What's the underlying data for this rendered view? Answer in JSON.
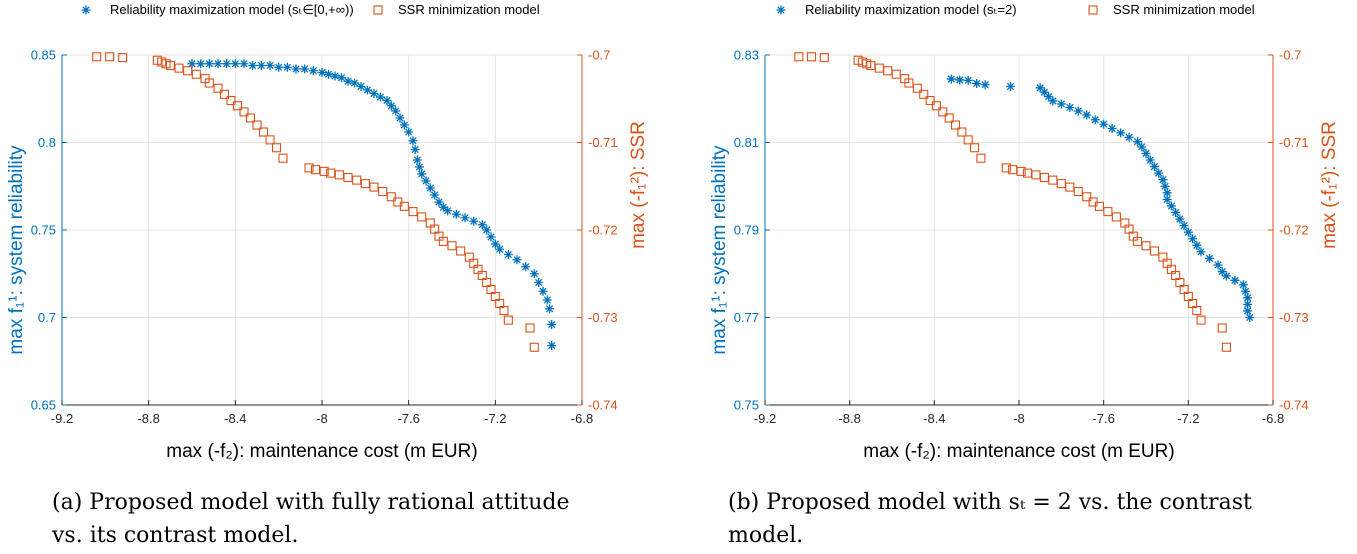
{
  "colors": {
    "series1": "#0072BD",
    "series2": "#D95319",
    "grid": "#e3e3e3"
  },
  "chart_data": [
    {
      "type": "scatter",
      "panel": "a",
      "caption_line1": "(a) Proposed model with fully rational attitude",
      "caption_line2": "vs. its contrast model.",
      "xlabel": "max (-f₂): maintenance cost (m EUR)",
      "ylabel_left": "max f₁¹: system reliability",
      "ylabel_right": "max (-f₁²): SSR",
      "xlim": [
        -9.2,
        -6.8
      ],
      "ylim_left": [
        0.65,
        0.85
      ],
      "ylim_right": [
        -0.74,
        -0.7
      ],
      "xticks": [
        "-9.2",
        "-8.8",
        "-8.4",
        "-8",
        "-7.6",
        "-7.2",
        "-6.8"
      ],
      "yticks_left": [
        "0.65",
        "0.7",
        "0.75",
        "0.8",
        "0.85"
      ],
      "yticks_right": [
        "-0.74",
        "-0.73",
        "-0.72",
        "-0.71",
        "-0.7"
      ],
      "legend_position": "top",
      "series": [
        {
          "name": "Reliability maximization model (sₜ∈[0,+∞))",
          "marker": "star",
          "axis": "left",
          "points": [
            [
              -8.6,
              0.845
            ],
            [
              -8.56,
              0.845
            ],
            [
              -8.52,
              0.845
            ],
            [
              -8.48,
              0.845
            ],
            [
              -8.44,
              0.845
            ],
            [
              -8.4,
              0.845
            ],
            [
              -8.36,
              0.845
            ],
            [
              -8.32,
              0.844
            ],
            [
              -8.28,
              0.844
            ],
            [
              -8.24,
              0.844
            ],
            [
              -8.2,
              0.843
            ],
            [
              -8.16,
              0.843
            ],
            [
              -8.12,
              0.842
            ],
            [
              -8.08,
              0.842
            ],
            [
              -8.04,
              0.841
            ],
            [
              -8.0,
              0.84
            ],
            [
              -7.97,
              0.839
            ],
            [
              -7.94,
              0.838
            ],
            [
              -7.91,
              0.837
            ],
            [
              -7.88,
              0.835
            ],
            [
              -7.85,
              0.834
            ],
            [
              -7.82,
              0.832
            ],
            [
              -7.79,
              0.83
            ],
            [
              -7.76,
              0.828
            ],
            [
              -7.73,
              0.826
            ],
            [
              -7.7,
              0.824
            ],
            [
              -7.68,
              0.821
            ],
            [
              -7.66,
              0.818
            ],
            [
              -7.64,
              0.814
            ],
            [
              -7.62,
              0.81
            ],
            [
              -7.6,
              0.806
            ],
            [
              -7.58,
              0.801
            ],
            [
              -7.57,
              0.796
            ],
            [
              -7.56,
              0.79
            ],
            [
              -7.55,
              0.786
            ],
            [
              -7.54,
              0.782
            ],
            [
              -7.52,
              0.778
            ],
            [
              -7.5,
              0.774
            ],
            [
              -7.48,
              0.77
            ],
            [
              -7.46,
              0.766
            ],
            [
              -7.44,
              0.763
            ],
            [
              -7.42,
              0.761
            ],
            [
              -7.38,
              0.759
            ],
            [
              -7.34,
              0.757
            ],
            [
              -7.3,
              0.755
            ],
            [
              -7.26,
              0.753
            ],
            [
              -7.24,
              0.75
            ],
            [
              -7.22,
              0.746
            ],
            [
              -7.2,
              0.742
            ],
            [
              -7.18,
              0.739
            ],
            [
              -7.14,
              0.736
            ],
            [
              -7.1,
              0.733
            ],
            [
              -7.06,
              0.729
            ],
            [
              -7.02,
              0.725
            ],
            [
              -7.0,
              0.72
            ],
            [
              -6.98,
              0.715
            ],
            [
              -6.96,
              0.71
            ],
            [
              -6.95,
              0.705
            ],
            [
              -6.94,
              0.696
            ],
            [
              -6.94,
              0.684
            ]
          ]
        },
        {
          "name": "SSR minimization model",
          "marker": "square",
          "axis": "right",
          "points": [
            [
              -9.04,
              -0.7002
            ],
            [
              -8.98,
              -0.7002
            ],
            [
              -8.92,
              -0.7003
            ],
            [
              -8.76,
              -0.7006
            ],
            [
              -8.74,
              -0.7008
            ],
            [
              -8.72,
              -0.701
            ],
            [
              -8.7,
              -0.7012
            ],
            [
              -8.66,
              -0.7015
            ],
            [
              -8.62,
              -0.7018
            ],
            [
              -8.58,
              -0.7022
            ],
            [
              -8.54,
              -0.7027
            ],
            [
              -8.52,
              -0.7032
            ],
            [
              -8.48,
              -0.7038
            ],
            [
              -8.45,
              -0.7045
            ],
            [
              -8.42,
              -0.7052
            ],
            [
              -8.39,
              -0.7058
            ],
            [
              -8.36,
              -0.7065
            ],
            [
              -8.33,
              -0.7072
            ],
            [
              -8.3,
              -0.708
            ],
            [
              -8.27,
              -0.7088
            ],
            [
              -8.24,
              -0.7097
            ],
            [
              -8.21,
              -0.7106
            ],
            [
              -8.18,
              -0.7118
            ],
            [
              -8.06,
              -0.7129
            ],
            [
              -8.03,
              -0.7131
            ],
            [
              -7.99,
              -0.7133
            ],
            [
              -7.96,
              -0.7135
            ],
            [
              -7.92,
              -0.7137
            ],
            [
              -7.88,
              -0.714
            ],
            [
              -7.84,
              -0.7143
            ],
            [
              -7.8,
              -0.7147
            ],
            [
              -7.76,
              -0.7151
            ],
            [
              -7.72,
              -0.7156
            ],
            [
              -7.68,
              -0.7162
            ],
            [
              -7.65,
              -0.7168
            ],
            [
              -7.62,
              -0.7173
            ],
            [
              -7.58,
              -0.7179
            ],
            [
              -7.54,
              -0.7185
            ],
            [
              -7.5,
              -0.7192
            ],
            [
              -7.48,
              -0.7199
            ],
            [
              -7.46,
              -0.7207
            ],
            [
              -7.44,
              -0.7213
            ],
            [
              -7.4,
              -0.7218
            ],
            [
              -7.36,
              -0.7224
            ],
            [
              -7.32,
              -0.7231
            ],
            [
              -7.3,
              -0.7238
            ],
            [
              -7.28,
              -0.7245
            ],
            [
              -7.26,
              -0.7252
            ],
            [
              -7.24,
              -0.726
            ],
            [
              -7.22,
              -0.7268
            ],
            [
              -7.2,
              -0.7276
            ],
            [
              -7.18,
              -0.7284
            ],
            [
              -7.16,
              -0.7292
            ],
            [
              -7.14,
              -0.7303
            ],
            [
              -7.04,
              -0.7312
            ],
            [
              -7.02,
              -0.7334
            ]
          ]
        }
      ]
    },
    {
      "type": "scatter",
      "panel": "b",
      "caption_line1": "(b) Proposed model with sₜ = 2 vs. the contrast",
      "caption_line2": "model.",
      "xlabel": "max (-f₂): maintenance cost (m EUR)",
      "ylabel_left": "max f₁¹: system reliability",
      "ylabel_right": "max (-f₁²): SSR",
      "xlim": [
        -9.2,
        -6.8
      ],
      "ylim_left": [
        0.75,
        0.83
      ],
      "ylim_right": [
        -0.74,
        -0.7
      ],
      "xticks": [
        "-9.2",
        "-8.8",
        "-8.4",
        "-8",
        "-7.6",
        "-7.2",
        "-6.8"
      ],
      "yticks_left": [
        "0.75",
        "0.77",
        "0.79",
        "0.81",
        "0.83"
      ],
      "yticks_right": [
        "-0.74",
        "-0.73",
        "-0.72",
        "-0.71",
        "-0.7"
      ],
      "legend_position": "top",
      "series": [
        {
          "name": "Reliability maximization model (sₜ=2)",
          "marker": "star",
          "axis": "left",
          "points": [
            [
              -8.32,
              0.8245
            ],
            [
              -8.28,
              0.8243
            ],
            [
              -8.24,
              0.8242
            ],
            [
              -8.2,
              0.8235
            ],
            [
              -8.16,
              0.8232
            ],
            [
              -8.04,
              0.8228
            ],
            [
              -7.9,
              0.8225
            ],
            [
              -7.88,
              0.8215
            ],
            [
              -7.86,
              0.8205
            ],
            [
              -7.84,
              0.8195
            ],
            [
              -7.8,
              0.8188
            ],
            [
              -7.76,
              0.818
            ],
            [
              -7.72,
              0.8172
            ],
            [
              -7.68,
              0.8163
            ],
            [
              -7.64,
              0.8152
            ],
            [
              -7.6,
              0.8142
            ],
            [
              -7.56,
              0.8132
            ],
            [
              -7.52,
              0.8122
            ],
            [
              -7.48,
              0.8112
            ],
            [
              -7.44,
              0.8102
            ],
            [
              -7.42,
              0.809
            ],
            [
              -7.4,
              0.8075
            ],
            [
              -7.38,
              0.806
            ],
            [
              -7.36,
              0.8045
            ],
            [
              -7.34,
              0.803
            ],
            [
              -7.32,
              0.8015
            ],
            [
              -7.31,
              0.8
            ],
            [
              -7.3,
              0.7985
            ],
            [
              -7.3,
              0.797
            ],
            [
              -7.28,
              0.7955
            ],
            [
              -7.26,
              0.794
            ],
            [
              -7.24,
              0.7925
            ],
            [
              -7.22,
              0.791
            ],
            [
              -7.2,
              0.7895
            ],
            [
              -7.18,
              0.788
            ],
            [
              -7.16,
              0.7865
            ],
            [
              -7.14,
              0.785
            ],
            [
              -7.1,
              0.7835
            ],
            [
              -7.06,
              0.782
            ],
            [
              -7.04,
              0.7805
            ],
            [
              -7.02,
              0.7795
            ],
            [
              -6.98,
              0.7785
            ],
            [
              -6.94,
              0.7775
            ],
            [
              -6.93,
              0.776
            ],
            [
              -6.92,
              0.7745
            ],
            [
              -6.92,
              0.773
            ],
            [
              -6.92,
              0.7715
            ],
            [
              -6.91,
              0.77
            ]
          ]
        },
        {
          "name": "SSR minimization model",
          "marker": "square",
          "axis": "right",
          "points": [
            [
              -9.04,
              -0.7002
            ],
            [
              -8.98,
              -0.7002
            ],
            [
              -8.92,
              -0.7003
            ],
            [
              -8.76,
              -0.7006
            ],
            [
              -8.74,
              -0.7008
            ],
            [
              -8.72,
              -0.701
            ],
            [
              -8.7,
              -0.7012
            ],
            [
              -8.66,
              -0.7015
            ],
            [
              -8.62,
              -0.7018
            ],
            [
              -8.58,
              -0.7022
            ],
            [
              -8.54,
              -0.7027
            ],
            [
              -8.52,
              -0.7032
            ],
            [
              -8.48,
              -0.7038
            ],
            [
              -8.45,
              -0.7045
            ],
            [
              -8.42,
              -0.7052
            ],
            [
              -8.39,
              -0.7058
            ],
            [
              -8.36,
              -0.7065
            ],
            [
              -8.33,
              -0.7072
            ],
            [
              -8.3,
              -0.708
            ],
            [
              -8.27,
              -0.7088
            ],
            [
              -8.24,
              -0.7097
            ],
            [
              -8.21,
              -0.7106
            ],
            [
              -8.18,
              -0.7118
            ],
            [
              -8.06,
              -0.7129
            ],
            [
              -8.03,
              -0.7131
            ],
            [
              -7.99,
              -0.7133
            ],
            [
              -7.96,
              -0.7135
            ],
            [
              -7.92,
              -0.7137
            ],
            [
              -7.88,
              -0.714
            ],
            [
              -7.84,
              -0.7143
            ],
            [
              -7.8,
              -0.7147
            ],
            [
              -7.76,
              -0.7151
            ],
            [
              -7.72,
              -0.7156
            ],
            [
              -7.68,
              -0.7162
            ],
            [
              -7.65,
              -0.7168
            ],
            [
              -7.62,
              -0.7173
            ],
            [
              -7.58,
              -0.7179
            ],
            [
              -7.54,
              -0.7185
            ],
            [
              -7.5,
              -0.7192
            ],
            [
              -7.48,
              -0.7199
            ],
            [
              -7.46,
              -0.7207
            ],
            [
              -7.44,
              -0.7213
            ],
            [
              -7.4,
              -0.7218
            ],
            [
              -7.36,
              -0.7224
            ],
            [
              -7.32,
              -0.7231
            ],
            [
              -7.3,
              -0.7238
            ],
            [
              -7.28,
              -0.7245
            ],
            [
              -7.26,
              -0.7252
            ],
            [
              -7.24,
              -0.726
            ],
            [
              -7.22,
              -0.7268
            ],
            [
              -7.2,
              -0.7276
            ],
            [
              -7.18,
              -0.7284
            ],
            [
              -7.16,
              -0.7292
            ],
            [
              -7.14,
              -0.7303
            ],
            [
              -7.04,
              -0.7312
            ],
            [
              -7.02,
              -0.7334
            ]
          ]
        }
      ]
    }
  ]
}
